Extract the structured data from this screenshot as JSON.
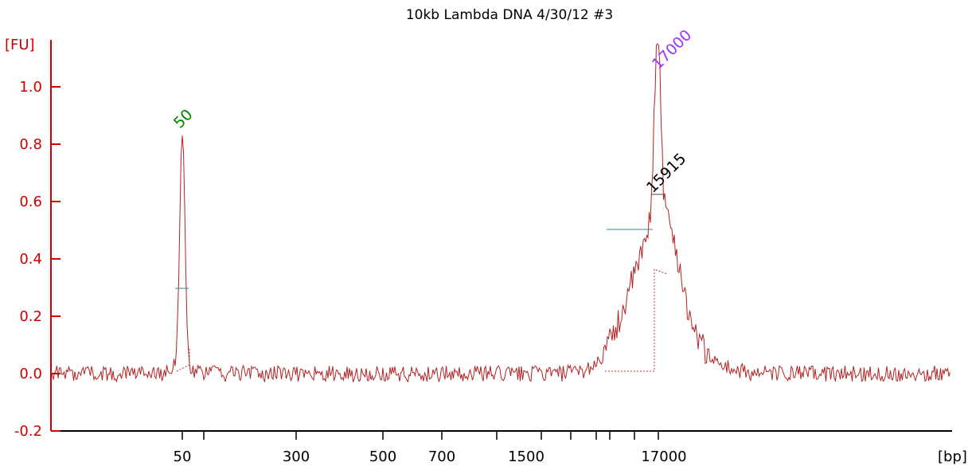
{
  "chart_data": {
    "type": "line",
    "title": "10kb Lambda DNA 4/30/12 #3",
    "ylabel": "[FU]",
    "xlabel": "[bp]",
    "ylim": [
      -0.2,
      1.15
    ],
    "y_ticks": [
      "-0.2",
      "0.0",
      "0.2",
      "0.4",
      "0.6",
      "0.8",
      "1.0"
    ],
    "x_tick_labels": [
      "50",
      "300",
      "500",
      "700",
      "1500",
      "17000"
    ],
    "peaks": [
      {
        "label": "50",
        "height": 0.81,
        "color": "#008000"
      },
      {
        "label": "17000",
        "height": 1.04,
        "color": "#9933ff"
      },
      {
        "label": "15915",
        "height": 0.63,
        "color": "#000000"
      }
    ],
    "series": [
      {
        "color": "#b22222"
      }
    ]
  }
}
